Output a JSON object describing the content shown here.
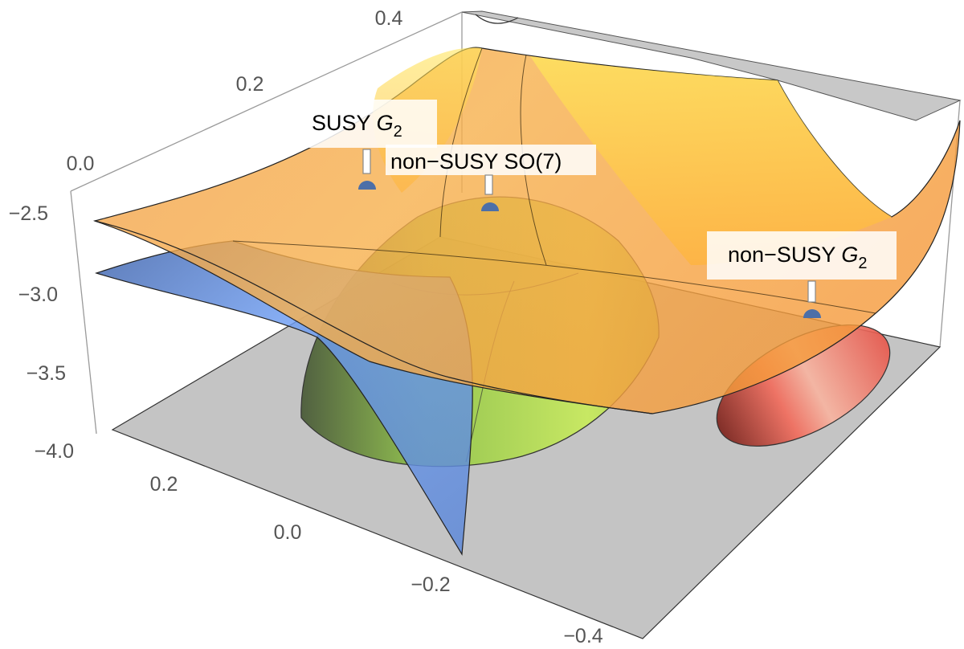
{
  "chart_data": {
    "type": "surface3d",
    "axes": {
      "x_ticks": [
        "0.2",
        "0.0",
        "−0.2",
        "−0.4"
      ],
      "y_ticks": [
        "0.4",
        "0.2",
        "0.0"
      ],
      "z_ticks": [
        "−2.5",
        "−3.0",
        "−3.5",
        "−4.0"
      ],
      "zlim": [
        -4.0,
        -2.5
      ]
    },
    "surfaces": [
      {
        "name": "",
        "color": "#ffc23a"
      },
      {
        "name": "",
        "color": "#4f86e8"
      },
      {
        "name": "",
        "color": "#a6d63c"
      },
      {
        "name": "",
        "color": "#e8564a"
      },
      {
        "name": "",
        "color": "#b4b4b4"
      }
    ],
    "critical_points": [
      {
        "label": "SUSY",
        "label_sub": "G",
        "label_subscript": "2"
      },
      {
        "label": "non−SUSY SO(7)",
        "label_sub": "",
        "label_subscript": ""
      },
      {
        "label": "non−SUSY",
        "label_sub": "G",
        "label_subscript": "2"
      }
    ],
    "point_color": "#4c6fa8",
    "grid": false,
    "legend": "none"
  }
}
